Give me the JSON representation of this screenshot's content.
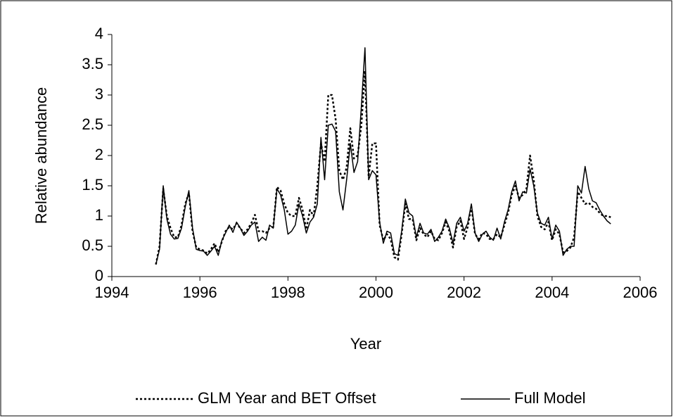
{
  "chart_data": {
    "type": "line",
    "x_label": "Year",
    "y_label": "Relative abundance",
    "xlim": [
      1994,
      2006
    ],
    "xticks": [
      1994,
      1996,
      1998,
      2000,
      2002,
      2004,
      2006
    ],
    "ylim": [
      0,
      4
    ],
    "yticks": [
      0,
      0.5,
      1,
      1.5,
      2,
      2.5,
      3,
      3.5,
      4
    ],
    "grid": false,
    "legend": "bottom",
    "x": [
      1995,
      1995.083,
      1995.167,
      1995.25,
      1995.333,
      1995.417,
      1995.5,
      1995.583,
      1995.667,
      1995.75,
      1995.833,
      1995.917,
      1996,
      1996.083,
      1996.167,
      1996.25,
      1996.333,
      1996.417,
      1996.5,
      1996.583,
      1996.667,
      1996.75,
      1996.833,
      1996.917,
      1997,
      1997.083,
      1997.167,
      1997.25,
      1997.333,
      1997.417,
      1997.5,
      1997.583,
      1997.667,
      1997.75,
      1997.833,
      1997.917,
      1998,
      1998.083,
      1998.167,
      1998.25,
      1998.333,
      1998.417,
      1998.5,
      1998.583,
      1998.667,
      1998.75,
      1998.833,
      1998.917,
      1999,
      1999.083,
      1999.167,
      1999.25,
      1999.333,
      1999.417,
      1999.5,
      1999.583,
      1999.667,
      1999.75,
      1999.833,
      1999.917,
      2000,
      2000.083,
      2000.167,
      2000.25,
      2000.333,
      2000.417,
      2000.5,
      2000.583,
      2000.667,
      2000.75,
      2000.833,
      2000.917,
      2001,
      2001.083,
      2001.167,
      2001.25,
      2001.333,
      2001.417,
      2001.5,
      2001.583,
      2001.667,
      2001.75,
      2001.833,
      2001.917,
      2002,
      2002.083,
      2002.167,
      2002.25,
      2002.333,
      2002.417,
      2002.5,
      2002.583,
      2002.667,
      2002.75,
      2002.833,
      2002.917,
      2003,
      2003.083,
      2003.167,
      2003.25,
      2003.333,
      2003.417,
      2003.5,
      2003.583,
      2003.667,
      2003.75,
      2003.833,
      2003.917,
      2004,
      2004.083,
      2004.167,
      2004.25,
      2004.333,
      2004.417,
      2004.5,
      2004.583,
      2004.667,
      2004.75,
      2004.833,
      2004.917,
      2005,
      2005.083,
      2005.167,
      2005.25,
      2005.333
    ],
    "series": [
      {
        "name": "GLM Year and BET Offset",
        "color": "#000000",
        "dash": "dotted",
        "values": [
          0.2,
          0.5,
          1.45,
          1.0,
          0.8,
          0.65,
          0.65,
          0.85,
          1.2,
          1.38,
          0.75,
          0.48,
          0.45,
          0.43,
          0.38,
          0.45,
          0.55,
          0.4,
          0.58,
          0.75,
          0.82,
          0.78,
          0.88,
          0.8,
          0.72,
          0.78,
          0.88,
          1.02,
          0.75,
          0.75,
          0.72,
          0.8,
          0.82,
          1.48,
          1.42,
          1.2,
          1.05,
          1.0,
          1.0,
          1.3,
          1.1,
          0.78,
          1.1,
          1.0,
          1.5,
          2.2,
          1.9,
          3.0,
          3.0,
          2.6,
          1.75,
          1.6,
          1.8,
          2.45,
          1.95,
          2.0,
          2.5,
          3.4,
          1.65,
          2.2,
          2.2,
          0.85,
          0.6,
          0.7,
          0.62,
          0.32,
          0.28,
          0.7,
          1.2,
          0.95,
          0.95,
          0.6,
          0.8,
          0.7,
          0.65,
          0.75,
          0.62,
          0.6,
          0.72,
          0.9,
          0.75,
          0.48,
          0.82,
          0.92,
          0.62,
          0.82,
          1.15,
          0.7,
          0.62,
          0.72,
          0.7,
          0.62,
          0.62,
          0.7,
          0.65,
          0.85,
          1.05,
          1.35,
          1.5,
          1.3,
          1.35,
          1.45,
          2.0,
          1.6,
          1.0,
          0.82,
          0.78,
          0.9,
          0.6,
          0.78,
          0.7,
          0.4,
          0.42,
          0.48,
          0.65,
          1.4,
          1.3,
          1.2,
          1.22,
          1.15,
          1.12,
          1.05,
          1.0,
          1.0,
          0.98
        ]
      },
      {
        "name": "Full Model",
        "color": "#000000",
        "dash": "solid",
        "values": [
          0.2,
          0.45,
          1.5,
          0.95,
          0.7,
          0.62,
          0.63,
          0.8,
          1.15,
          1.42,
          0.8,
          0.45,
          0.43,
          0.42,
          0.35,
          0.42,
          0.5,
          0.35,
          0.6,
          0.72,
          0.85,
          0.73,
          0.9,
          0.8,
          0.68,
          0.75,
          0.85,
          0.9,
          0.58,
          0.65,
          0.6,
          0.85,
          0.8,
          1.45,
          1.35,
          1.1,
          0.7,
          0.75,
          0.85,
          1.2,
          1.0,
          0.72,
          0.9,
          0.98,
          1.2,
          2.3,
          1.6,
          2.5,
          2.52,
          2.4,
          1.4,
          1.1,
          1.6,
          2.2,
          1.72,
          1.9,
          2.8,
          3.78,
          1.6,
          1.75,
          1.68,
          0.9,
          0.55,
          0.75,
          0.72,
          0.38,
          0.35,
          0.75,
          1.28,
          1.05,
          1.0,
          0.65,
          0.88,
          0.72,
          0.7,
          0.78,
          0.58,
          0.65,
          0.75,
          0.95,
          0.8,
          0.55,
          0.88,
          0.98,
          0.75,
          0.88,
          1.2,
          0.72,
          0.58,
          0.7,
          0.75,
          0.65,
          0.6,
          0.8,
          0.62,
          0.9,
          1.1,
          1.4,
          1.58,
          1.25,
          1.4,
          1.38,
          1.78,
          1.5,
          1.05,
          0.88,
          0.85,
          0.98,
          0.62,
          0.85,
          0.75,
          0.35,
          0.45,
          0.5,
          0.5,
          1.5,
          1.38,
          1.82,
          1.45,
          1.25,
          1.22,
          1.1,
          1.0,
          0.92,
          0.87
        ]
      }
    ]
  }
}
